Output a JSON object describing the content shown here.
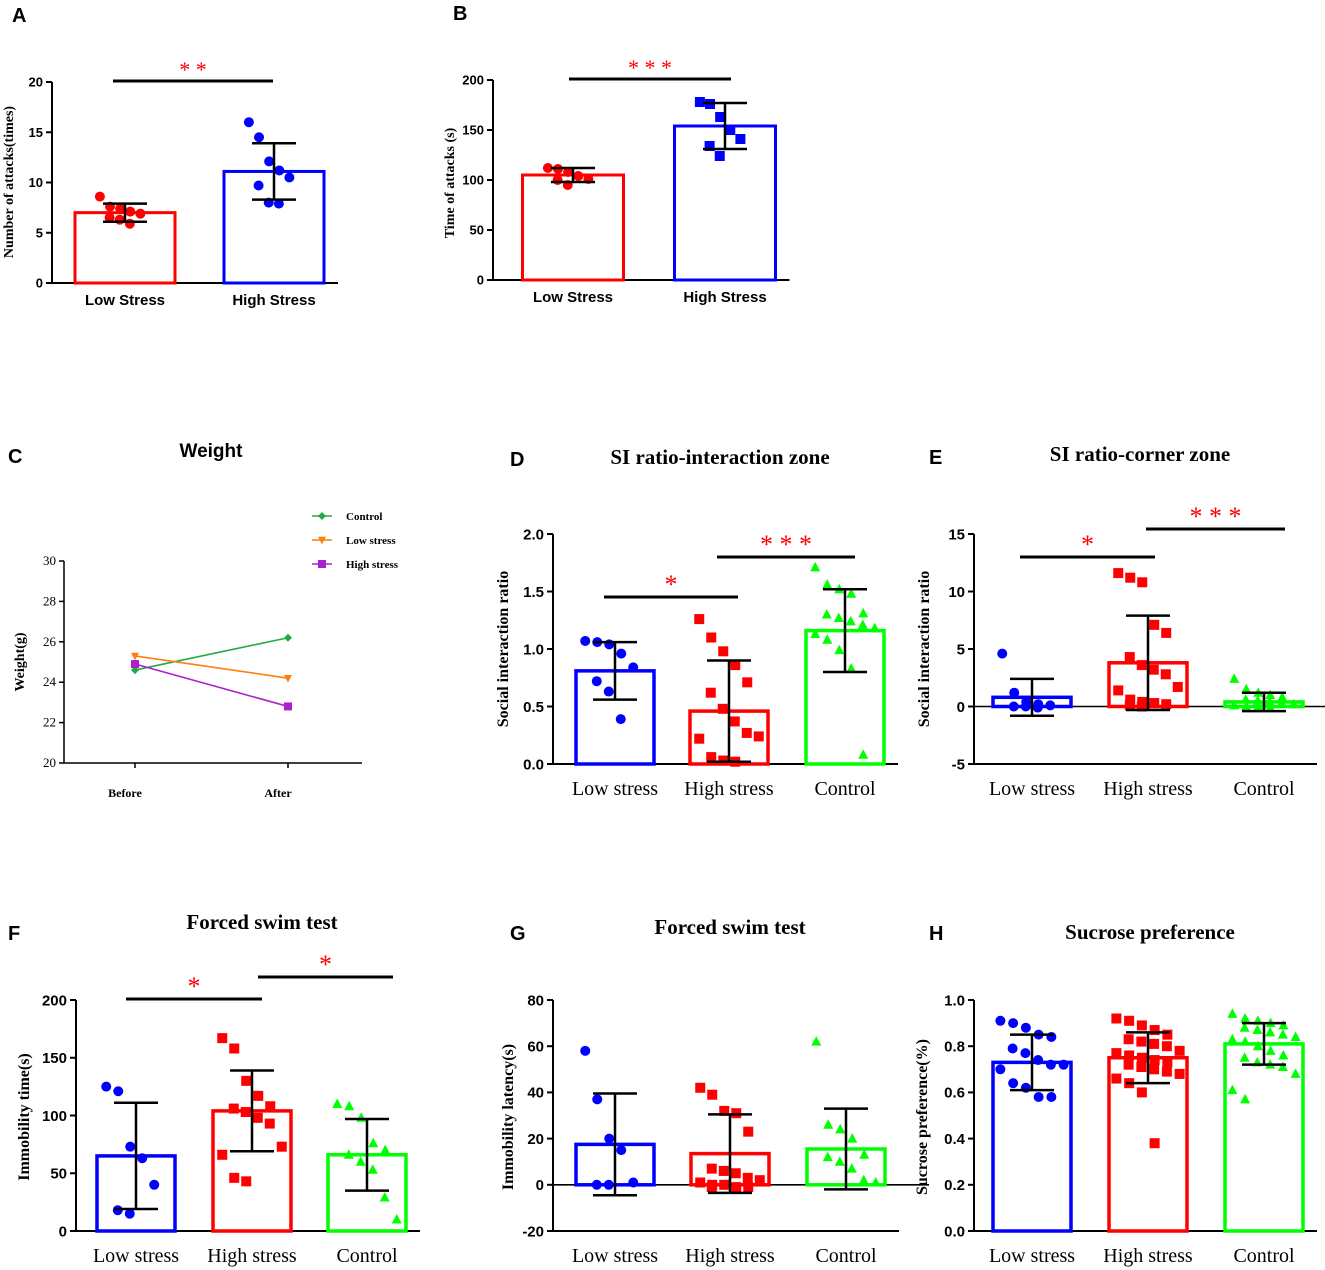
{
  "colors": {
    "red": "#ff0000",
    "blue": "#0000ff",
    "green": "#00ff00",
    "gline": "#22aa44",
    "orange": "#ff7f0e",
    "purple": "#aa22cc",
    "black": "#000000"
  },
  "chart_data": [
    {
      "id": "A",
      "panel_label": "A",
      "type": "bar",
      "title": "",
      "xlabel": "",
      "ylabel": "Number of  attacks(times)",
      "ylim": [
        0,
        20
      ],
      "yticks": [
        "0",
        "5",
        "10",
        "15",
        "20"
      ],
      "categories": [
        "Low Stress",
        "High Stress"
      ],
      "series": [
        {
          "name": "Low Stress",
          "color": "red",
          "marker": "circle",
          "mean": 7,
          "sd": 0.9,
          "points": [
            8.6,
            7.6,
            7.4,
            7.1,
            6.9,
            6.5,
            6.3,
            5.9
          ]
        },
        {
          "name": "High Stress",
          "color": "blue",
          "marker": "circle",
          "mean": 11.1,
          "sd": 2.8,
          "points": [
            16,
            14.5,
            12.1,
            11.2,
            10.5,
            9.7,
            8,
            7.9
          ]
        }
      ],
      "significance": [
        {
          "from": 0,
          "to": 1,
          "label": "**"
        }
      ]
    },
    {
      "id": "B",
      "panel_label": "B",
      "type": "bar",
      "title": "",
      "xlabel": "",
      "ylabel": "Time of attacks (s)",
      "ylim": [
        0,
        200
      ],
      "yticks": [
        "0",
        "50",
        "100",
        "150",
        "200"
      ],
      "categories": [
        "Low Stress",
        "High Stress"
      ],
      "series": [
        {
          "name": "Low Stress",
          "color": "red",
          "marker": "circle",
          "mean": 105,
          "sd": 7,
          "points": [
            112,
            111,
            108,
            104,
            101,
            100,
            95
          ]
        },
        {
          "name": "High Stress",
          "color": "blue",
          "marker": "square",
          "mean": 154,
          "sd": 23,
          "points": [
            178,
            176,
            163,
            150,
            141,
            134,
            124
          ]
        }
      ],
      "significance": [
        {
          "from": 0,
          "to": 1,
          "label": "***"
        }
      ]
    },
    {
      "id": "C",
      "panel_label": "C",
      "type": "line",
      "title": "Weight",
      "xlabel": "",
      "ylabel": "Weight(g)",
      "ylim": [
        20,
        30
      ],
      "yticks": [
        "20",
        "22",
        "24",
        "26",
        "28",
        "30"
      ],
      "categories": [
        "Before",
        "After"
      ],
      "series": [
        {
          "name": "Control",
          "color": "gline",
          "marker": "diamond",
          "values": [
            24.6,
            26.2
          ]
        },
        {
          "name": "Low stress",
          "color": "orange",
          "marker": "triangle-down",
          "values": [
            25.3,
            24.2
          ]
        },
        {
          "name": "High stress",
          "color": "purple",
          "marker": "square",
          "values": [
            24.9,
            22.8
          ]
        }
      ],
      "legend": "top-right"
    },
    {
      "id": "D",
      "panel_label": "D",
      "type": "bar",
      "title": "SI ratio-interaction zone",
      "xlabel": "",
      "ylabel": "Social interaction ratio",
      "ylim": [
        0,
        2
      ],
      "yticks": [
        "0.0",
        "0.5",
        "1.0",
        "1.5",
        "2.0"
      ],
      "categories": [
        "Low stress",
        "High stress",
        "Control"
      ],
      "series": [
        {
          "name": "Low stress",
          "color": "blue",
          "marker": "circle",
          "mean": 0.81,
          "sd": 0.25,
          "points": [
            1.07,
            1.06,
            1.04,
            0.96,
            0.84,
            0.72,
            0.63,
            0.39
          ]
        },
        {
          "name": "High stress",
          "color": "red",
          "marker": "square",
          "mean": 0.46,
          "sd": 0.44,
          "points": [
            1.26,
            1.1,
            0.98,
            0.86,
            0.71,
            0.62,
            0.48,
            0.37,
            0.27,
            0.24,
            0.22,
            0.06,
            0.03,
            0.02
          ]
        },
        {
          "name": "Control",
          "color": "green",
          "marker": "triangle",
          "mean": 1.16,
          "sd": 0.36,
          "points": [
            1.71,
            1.56,
            1.52,
            1.48,
            1.31,
            1.3,
            1.27,
            1.24,
            1.21,
            1.18,
            1.13,
            1.08,
            0.99,
            0.83,
            0.08
          ]
        }
      ],
      "significance": [
        {
          "from": 0,
          "to": 1,
          "label": "*"
        },
        {
          "from": 1,
          "to": 2,
          "label": "***"
        }
      ]
    },
    {
      "id": "E",
      "panel_label": "E",
      "type": "bar",
      "title": "SI ratio-corner zone",
      "xlabel": "",
      "ylabel": "Social interaction ratio",
      "ylim": [
        -5,
        15
      ],
      "yticks": [
        "-5",
        "0",
        "5",
        "10",
        "15"
      ],
      "categories": [
        "Low stress",
        "High stress",
        "Control"
      ],
      "series": [
        {
          "name": "Low stress",
          "color": "blue",
          "marker": "circle",
          "mean": 0.8,
          "sd": 1.6,
          "points": [
            4.6,
            1.2,
            0.4,
            0.2,
            0.1,
            0.0,
            0.0,
            -0.1
          ]
        },
        {
          "name": "High stress",
          "color": "red",
          "marker": "square",
          "mean": 3.8,
          "sd": 4.1,
          "points": [
            11.6,
            11.2,
            10.8,
            7.1,
            6.4,
            4.3,
            3.6,
            3.2,
            2.8,
            1.7,
            1.4,
            0.6,
            0.4,
            0.3,
            0.2,
            0.1,
            0.0
          ]
        },
        {
          "name": "Control",
          "color": "green",
          "marker": "triangle",
          "mean": 0.4,
          "sd": 0.8,
          "points": [
            2.4,
            1.5,
            1.2,
            1.0,
            0.8,
            0.6,
            0.5,
            0.4,
            0.3,
            0.2,
            0.1,
            0.0,
            0.0,
            -0.1
          ]
        }
      ],
      "significance": [
        {
          "from": 0,
          "to": 1,
          "label": "*"
        },
        {
          "from": 1,
          "to": 2,
          "label": "***"
        }
      ]
    },
    {
      "id": "F",
      "panel_label": "F",
      "type": "bar",
      "title": "Forced swim test",
      "xlabel": "",
      "ylabel": "Immobility time(s)",
      "ylim": [
        0,
        200
      ],
      "yticks": [
        "0",
        "50",
        "100",
        "150",
        "200"
      ],
      "categories": [
        "Low stress",
        "High stress",
        "Control"
      ],
      "series": [
        {
          "name": "Low stress",
          "color": "blue",
          "marker": "circle",
          "mean": 65,
          "sd": 46,
          "points": [
            125,
            121,
            73,
            63,
            40,
            18,
            15
          ]
        },
        {
          "name": "High stress",
          "color": "red",
          "marker": "square",
          "mean": 104,
          "sd": 35,
          "points": [
            167,
            158,
            130,
            117,
            108,
            106,
            103,
            98,
            93,
            73,
            66,
            46,
            43
          ]
        },
        {
          "name": "Control",
          "color": "green",
          "marker": "triangle",
          "mean": 66,
          "sd": 31,
          "points": [
            110,
            108,
            98,
            76,
            70,
            66,
            60,
            53,
            29,
            10
          ]
        }
      ],
      "significance": [
        {
          "from": 0,
          "to": 1,
          "label": "*"
        },
        {
          "from": 1,
          "to": 2,
          "label": "*"
        }
      ]
    },
    {
      "id": "G",
      "panel_label": "G",
      "type": "bar",
      "title": "Forced swim test",
      "xlabel": "",
      "ylabel": "Immobility latency(s)",
      "ylim": [
        -20,
        80
      ],
      "yticks": [
        "-20",
        "0",
        "20",
        "40",
        "60",
        "80"
      ],
      "categories": [
        "Low stress",
        "High stress",
        "Control"
      ],
      "series": [
        {
          "name": "Low stress",
          "color": "blue",
          "marker": "circle",
          "mean": 17.5,
          "sd": 22,
          "points": [
            58,
            37,
            20,
            15,
            1,
            0,
            0
          ]
        },
        {
          "name": "High stress",
          "color": "red",
          "marker": "square",
          "mean": 13.5,
          "sd": 17,
          "points": [
            42,
            39,
            32,
            31,
            23,
            7,
            6,
            5,
            3,
            2,
            1,
            0,
            0,
            -1,
            -1,
            -1
          ]
        },
        {
          "name": "Control",
          "color": "green",
          "marker": "triangle",
          "mean": 15.5,
          "sd": 17.5,
          "points": [
            62,
            26,
            24,
            20,
            13,
            12,
            10,
            7,
            2,
            1
          ]
        }
      ]
    },
    {
      "id": "H",
      "panel_label": "H",
      "type": "bar",
      "title": "Sucrose preference",
      "xlabel": "",
      "ylabel": "Sucrose preference(%)",
      "ylim": [
        0,
        1
      ],
      "yticks": [
        "0.0",
        "0.2",
        "0.4",
        "0.6",
        "0.8",
        "1.0"
      ],
      "categories": [
        "Low stress",
        "High stress",
        "Control"
      ],
      "series": [
        {
          "name": "Low stress",
          "color": "blue",
          "marker": "circle",
          "mean": 0.73,
          "sd": 0.12,
          "points": [
            0.91,
            0.9,
            0.88,
            0.85,
            0.84,
            0.79,
            0.77,
            0.74,
            0.72,
            0.72,
            0.7,
            0.64,
            0.62,
            0.58,
            0.58
          ]
        },
        {
          "name": "High stress",
          "color": "red",
          "marker": "square",
          "mean": 0.75,
          "sd": 0.11,
          "points": [
            0.92,
            0.91,
            0.89,
            0.87,
            0.85,
            0.83,
            0.82,
            0.81,
            0.8,
            0.78,
            0.77,
            0.76,
            0.75,
            0.74,
            0.73,
            0.72,
            0.71,
            0.7,
            0.69,
            0.68,
            0.66,
            0.64,
            0.6,
            0.38
          ]
        },
        {
          "name": "Control",
          "color": "green",
          "marker": "triangle",
          "mean": 0.81,
          "sd": 0.09,
          "points": [
            0.94,
            0.92,
            0.91,
            0.9,
            0.89,
            0.88,
            0.87,
            0.86,
            0.85,
            0.84,
            0.83,
            0.82,
            0.8,
            0.78,
            0.76,
            0.75,
            0.73,
            0.72,
            0.71,
            0.68,
            0.61,
            0.57
          ]
        }
      ]
    }
  ]
}
